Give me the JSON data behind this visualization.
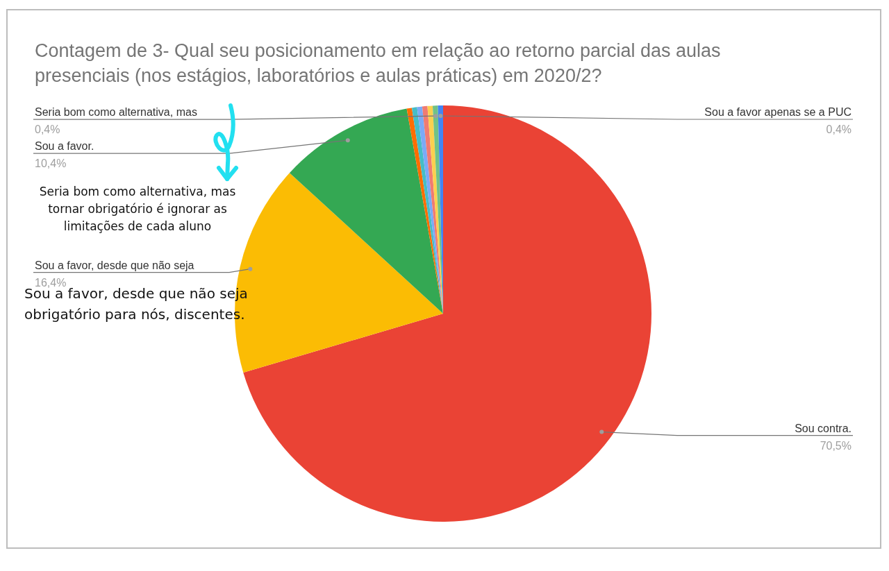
{
  "chart_data": {
    "type": "pie",
    "title": "Contagem de 3- Qual seu posicionamento em relação ao retorno parcial das aulas presenciais (nos estágios, laboratórios e aulas práticas) em 2020/2?",
    "categories": [
      "Sou contra.",
      "Sou a favor, desde que não seja",
      "Sou a favor.",
      null,
      null,
      null,
      null,
      null,
      "Seria bom como alternativa, mas",
      "Sou a favor apenas se a PUC"
    ],
    "values": [
      70.5,
      16.4,
      10.4,
      0.4,
      0.4,
      0.4,
      0.4,
      0.4,
      0.4,
      0.4
    ],
    "value_labels": [
      "70,5%",
      "16,4%",
      "10,4%",
      null,
      null,
      null,
      null,
      null,
      "0,4%",
      "0,4%"
    ],
    "colors": [
      "#ea4335",
      "#fbbc04",
      "#34a853",
      "#ff6d01",
      "#46bdc6",
      "#7baaf7",
      "#f07b72",
      "#fcd04f",
      "#71c287",
      "#4285f4"
    ],
    "annotations": [
      "Seria bom como alternativa, mas tornar obrigatório é ignorar as limitações de cada aluno",
      "Sou a favor, desde que não seja obrigatório para nós, discentes."
    ]
  }
}
